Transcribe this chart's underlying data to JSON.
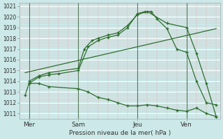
{
  "bg_color": "#cce8e8",
  "grid_color": "#aacccc",
  "grid_minor_color": "#bbdddd",
  "line_color": "#2d6e2d",
  "marker_color": "#2d6e2d",
  "xlabel_text": "Pression niveau de la mer( hPa )",
  "ylim": [
    1010.5,
    1021.3
  ],
  "yticks": [
    1011,
    1012,
    1013,
    1014,
    1015,
    1016,
    1017,
    1018,
    1019,
    1020,
    1021
  ],
  "xlim": [
    0,
    10.2
  ],
  "xtick_labels": [
    "Mer",
    "Sam",
    "Jeu",
    "Ven"
  ],
  "xtick_positions": [
    0.5,
    3.0,
    6.0,
    8.5
  ],
  "vline_positions": [
    0.5,
    3.0,
    6.0,
    8.5
  ],
  "lines": [
    {
      "x": [
        0.5,
        1.0,
        1.5,
        2.0,
        3.0,
        3.5,
        4.0,
        4.5,
        5.0,
        5.5,
        6.0,
        6.4,
        6.7,
        7.0,
        7.5,
        8.0,
        8.5,
        9.0,
        9.5,
        10.0
      ],
      "y": [
        1013.8,
        1014.4,
        1014.6,
        1014.7,
        1015.0,
        1017.2,
        1017.8,
        1018.1,
        1018.3,
        1019.0,
        1020.3,
        1020.5,
        1020.5,
        1019.8,
        1018.9,
        1017.0,
        1016.7,
        1014.0,
        1012.0,
        1011.8
      ],
      "has_markers": true
    },
    {
      "x": [
        0.5,
        1.0,
        1.5,
        3.0,
        3.3,
        3.7,
        4.0,
        4.5,
        5.0,
        5.5,
        6.0,
        6.5,
        7.5,
        8.5,
        9.0,
        9.5,
        10.0
      ],
      "y": [
        1014.0,
        1014.5,
        1014.8,
        1015.2,
        1017.0,
        1017.8,
        1018.0,
        1018.3,
        1018.5,
        1019.2,
        1020.2,
        1020.5,
        1019.4,
        1019.0,
        1016.6,
        1013.8,
        1010.7
      ],
      "has_markers": true
    },
    {
      "x": [
        0.3,
        10.0
      ],
      "y": [
        1014.8,
        1018.9
      ],
      "has_markers": false
    },
    {
      "x": [
        0.3,
        0.5,
        1.0,
        1.5,
        3.0,
        3.5,
        4.0,
        4.5,
        5.0,
        5.5,
        6.0,
        6.5,
        7.0,
        7.5,
        8.0,
        8.5,
        9.0,
        9.5,
        10.0
      ],
      "y": [
        1012.7,
        1013.8,
        1013.8,
        1013.5,
        1013.3,
        1013.0,
        1012.5,
        1012.3,
        1012.0,
        1011.7,
        1011.7,
        1011.8,
        1011.7,
        1011.5,
        1011.3,
        1011.2,
        1011.5,
        1011.0,
        1010.7
      ],
      "has_markers": true
    }
  ]
}
